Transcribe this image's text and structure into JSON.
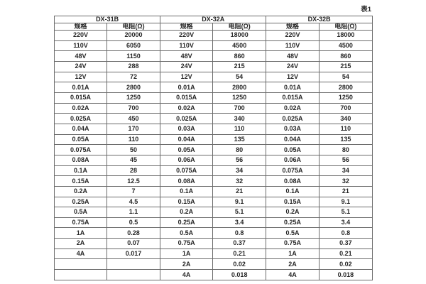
{
  "page": {
    "caption": "表1"
  },
  "colors": {
    "border": "#6b6b6b",
    "text": "#262626",
    "background": "#ffffff"
  },
  "table": {
    "groups": [
      {
        "label": "DX-31B"
      },
      {
        "label": "DX-32A"
      },
      {
        "label": "DX-32B"
      }
    ],
    "col_headers": [
      "规格",
      "电阻(Ω)",
      "规格",
      "电阻(Ω)",
      "规格",
      "电阻(Ω)"
    ],
    "rows": [
      [
        "220V",
        "20000",
        "220V",
        "18000",
        "220V",
        "18000"
      ],
      [
        "110V",
        "6050",
        "110V",
        "4500",
        "110V",
        "4500"
      ],
      [
        "48V",
        "1150",
        "48V",
        "860",
        "48V",
        "860"
      ],
      [
        "24V",
        "288",
        "24V",
        "215",
        "24V",
        "215"
      ],
      [
        "12V",
        "72",
        "12V",
        "54",
        "12V",
        "54"
      ],
      [
        "0.01A",
        "2800",
        "0.01A",
        "2800",
        "0.01A",
        "2800"
      ],
      [
        "0.015A",
        "1250",
        "0.015A",
        "1250",
        "0.015A",
        "1250"
      ],
      [
        "0.02A",
        "700",
        "0.02A",
        "700",
        "0.02A",
        "700"
      ],
      [
        "0.025A",
        "450",
        "0.025A",
        "340",
        "0.025A",
        "340"
      ],
      [
        "0.04A",
        "170",
        "0.03A",
        "110",
        "0.03A",
        "110"
      ],
      [
        "0.05A",
        "110",
        "0.04A",
        "135",
        "0.04A",
        "135"
      ],
      [
        "0.075A",
        "50",
        "0.05A",
        "80",
        "0.05A",
        "80"
      ],
      [
        "0.08A",
        "45",
        "0.06A",
        "56",
        "0.06A",
        "56"
      ],
      [
        "0.1A",
        "28",
        "0.075A",
        "34",
        "0.075A",
        "34"
      ],
      [
        "0.15A",
        "12.5",
        "0.08A",
        "32",
        "0.08A",
        "32"
      ],
      [
        "0.2A",
        "7",
        "0.1A",
        "21",
        "0.1A",
        "21"
      ],
      [
        "0.25A",
        "4.5",
        "0.15A",
        "9.1",
        "0.15A",
        "9.1"
      ],
      [
        "0.5A",
        "1.1",
        "0.2A",
        "5.1",
        "0.2A",
        "5.1"
      ],
      [
        "0.75A",
        "0.5",
        "0.25A",
        "3.4",
        "0.25A",
        "3.4"
      ],
      [
        "1A",
        "0.28",
        "0.5A",
        "0.8",
        "0.5A",
        "0.8"
      ],
      [
        "2A",
        "0.07",
        "0.75A",
        "0.37",
        "0.75A",
        "0.37"
      ],
      [
        "4A",
        "0.017",
        "1A",
        "0.21",
        "1A",
        "0.21"
      ],
      [
        "",
        "",
        "2A",
        "0.02",
        "2A",
        "0.02"
      ],
      [
        "",
        "",
        "4A",
        "0.018",
        "4A",
        "0.018"
      ]
    ]
  }
}
